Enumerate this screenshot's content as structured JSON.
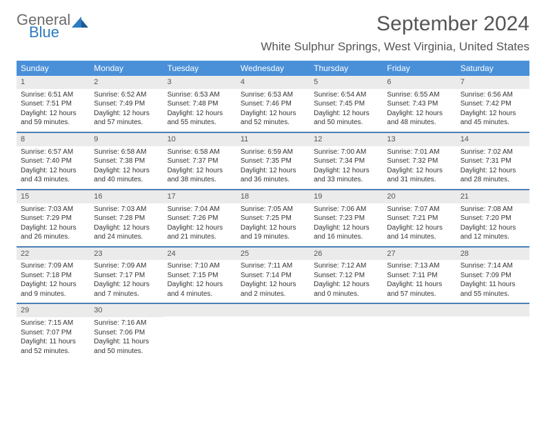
{
  "logo": {
    "line1": "General",
    "line2": "Blue",
    "icon_color": "#2d7bc0",
    "text_gray": "#6b6b6b"
  },
  "title": "September 2024",
  "location": "White Sulphur Springs, West Virginia, United States",
  "colors": {
    "header_bar": "#4a90d9",
    "week_divider": "#4a7fb5",
    "daynum_bg": "#ebebeb",
    "text": "#333333",
    "title_text": "#555555"
  },
  "weekdays": [
    "Sunday",
    "Monday",
    "Tuesday",
    "Wednesday",
    "Thursday",
    "Friday",
    "Saturday"
  ],
  "weeks": [
    [
      {
        "n": "1",
        "sr": "Sunrise: 6:51 AM",
        "ss": "Sunset: 7:51 PM",
        "dl": "Daylight: 12 hours and 59 minutes."
      },
      {
        "n": "2",
        "sr": "Sunrise: 6:52 AM",
        "ss": "Sunset: 7:49 PM",
        "dl": "Daylight: 12 hours and 57 minutes."
      },
      {
        "n": "3",
        "sr": "Sunrise: 6:53 AM",
        "ss": "Sunset: 7:48 PM",
        "dl": "Daylight: 12 hours and 55 minutes."
      },
      {
        "n": "4",
        "sr": "Sunrise: 6:53 AM",
        "ss": "Sunset: 7:46 PM",
        "dl": "Daylight: 12 hours and 52 minutes."
      },
      {
        "n": "5",
        "sr": "Sunrise: 6:54 AM",
        "ss": "Sunset: 7:45 PM",
        "dl": "Daylight: 12 hours and 50 minutes."
      },
      {
        "n": "6",
        "sr": "Sunrise: 6:55 AM",
        "ss": "Sunset: 7:43 PM",
        "dl": "Daylight: 12 hours and 48 minutes."
      },
      {
        "n": "7",
        "sr": "Sunrise: 6:56 AM",
        "ss": "Sunset: 7:42 PM",
        "dl": "Daylight: 12 hours and 45 minutes."
      }
    ],
    [
      {
        "n": "8",
        "sr": "Sunrise: 6:57 AM",
        "ss": "Sunset: 7:40 PM",
        "dl": "Daylight: 12 hours and 43 minutes."
      },
      {
        "n": "9",
        "sr": "Sunrise: 6:58 AM",
        "ss": "Sunset: 7:38 PM",
        "dl": "Daylight: 12 hours and 40 minutes."
      },
      {
        "n": "10",
        "sr": "Sunrise: 6:58 AM",
        "ss": "Sunset: 7:37 PM",
        "dl": "Daylight: 12 hours and 38 minutes."
      },
      {
        "n": "11",
        "sr": "Sunrise: 6:59 AM",
        "ss": "Sunset: 7:35 PM",
        "dl": "Daylight: 12 hours and 36 minutes."
      },
      {
        "n": "12",
        "sr": "Sunrise: 7:00 AM",
        "ss": "Sunset: 7:34 PM",
        "dl": "Daylight: 12 hours and 33 minutes."
      },
      {
        "n": "13",
        "sr": "Sunrise: 7:01 AM",
        "ss": "Sunset: 7:32 PM",
        "dl": "Daylight: 12 hours and 31 minutes."
      },
      {
        "n": "14",
        "sr": "Sunrise: 7:02 AM",
        "ss": "Sunset: 7:31 PM",
        "dl": "Daylight: 12 hours and 28 minutes."
      }
    ],
    [
      {
        "n": "15",
        "sr": "Sunrise: 7:03 AM",
        "ss": "Sunset: 7:29 PM",
        "dl": "Daylight: 12 hours and 26 minutes."
      },
      {
        "n": "16",
        "sr": "Sunrise: 7:03 AM",
        "ss": "Sunset: 7:28 PM",
        "dl": "Daylight: 12 hours and 24 minutes."
      },
      {
        "n": "17",
        "sr": "Sunrise: 7:04 AM",
        "ss": "Sunset: 7:26 PM",
        "dl": "Daylight: 12 hours and 21 minutes."
      },
      {
        "n": "18",
        "sr": "Sunrise: 7:05 AM",
        "ss": "Sunset: 7:25 PM",
        "dl": "Daylight: 12 hours and 19 minutes."
      },
      {
        "n": "19",
        "sr": "Sunrise: 7:06 AM",
        "ss": "Sunset: 7:23 PM",
        "dl": "Daylight: 12 hours and 16 minutes."
      },
      {
        "n": "20",
        "sr": "Sunrise: 7:07 AM",
        "ss": "Sunset: 7:21 PM",
        "dl": "Daylight: 12 hours and 14 minutes."
      },
      {
        "n": "21",
        "sr": "Sunrise: 7:08 AM",
        "ss": "Sunset: 7:20 PM",
        "dl": "Daylight: 12 hours and 12 minutes."
      }
    ],
    [
      {
        "n": "22",
        "sr": "Sunrise: 7:09 AM",
        "ss": "Sunset: 7:18 PM",
        "dl": "Daylight: 12 hours and 9 minutes."
      },
      {
        "n": "23",
        "sr": "Sunrise: 7:09 AM",
        "ss": "Sunset: 7:17 PM",
        "dl": "Daylight: 12 hours and 7 minutes."
      },
      {
        "n": "24",
        "sr": "Sunrise: 7:10 AM",
        "ss": "Sunset: 7:15 PM",
        "dl": "Daylight: 12 hours and 4 minutes."
      },
      {
        "n": "25",
        "sr": "Sunrise: 7:11 AM",
        "ss": "Sunset: 7:14 PM",
        "dl": "Daylight: 12 hours and 2 minutes."
      },
      {
        "n": "26",
        "sr": "Sunrise: 7:12 AM",
        "ss": "Sunset: 7:12 PM",
        "dl": "Daylight: 12 hours and 0 minutes."
      },
      {
        "n": "27",
        "sr": "Sunrise: 7:13 AM",
        "ss": "Sunset: 7:11 PM",
        "dl": "Daylight: 11 hours and 57 minutes."
      },
      {
        "n": "28",
        "sr": "Sunrise: 7:14 AM",
        "ss": "Sunset: 7:09 PM",
        "dl": "Daylight: 11 hours and 55 minutes."
      }
    ],
    [
      {
        "n": "29",
        "sr": "Sunrise: 7:15 AM",
        "ss": "Sunset: 7:07 PM",
        "dl": "Daylight: 11 hours and 52 minutes."
      },
      {
        "n": "30",
        "sr": "Sunrise: 7:16 AM",
        "ss": "Sunset: 7:06 PM",
        "dl": "Daylight: 11 hours and 50 minutes."
      },
      {
        "empty": true
      },
      {
        "empty": true
      },
      {
        "empty": true
      },
      {
        "empty": true
      },
      {
        "empty": true
      }
    ]
  ]
}
